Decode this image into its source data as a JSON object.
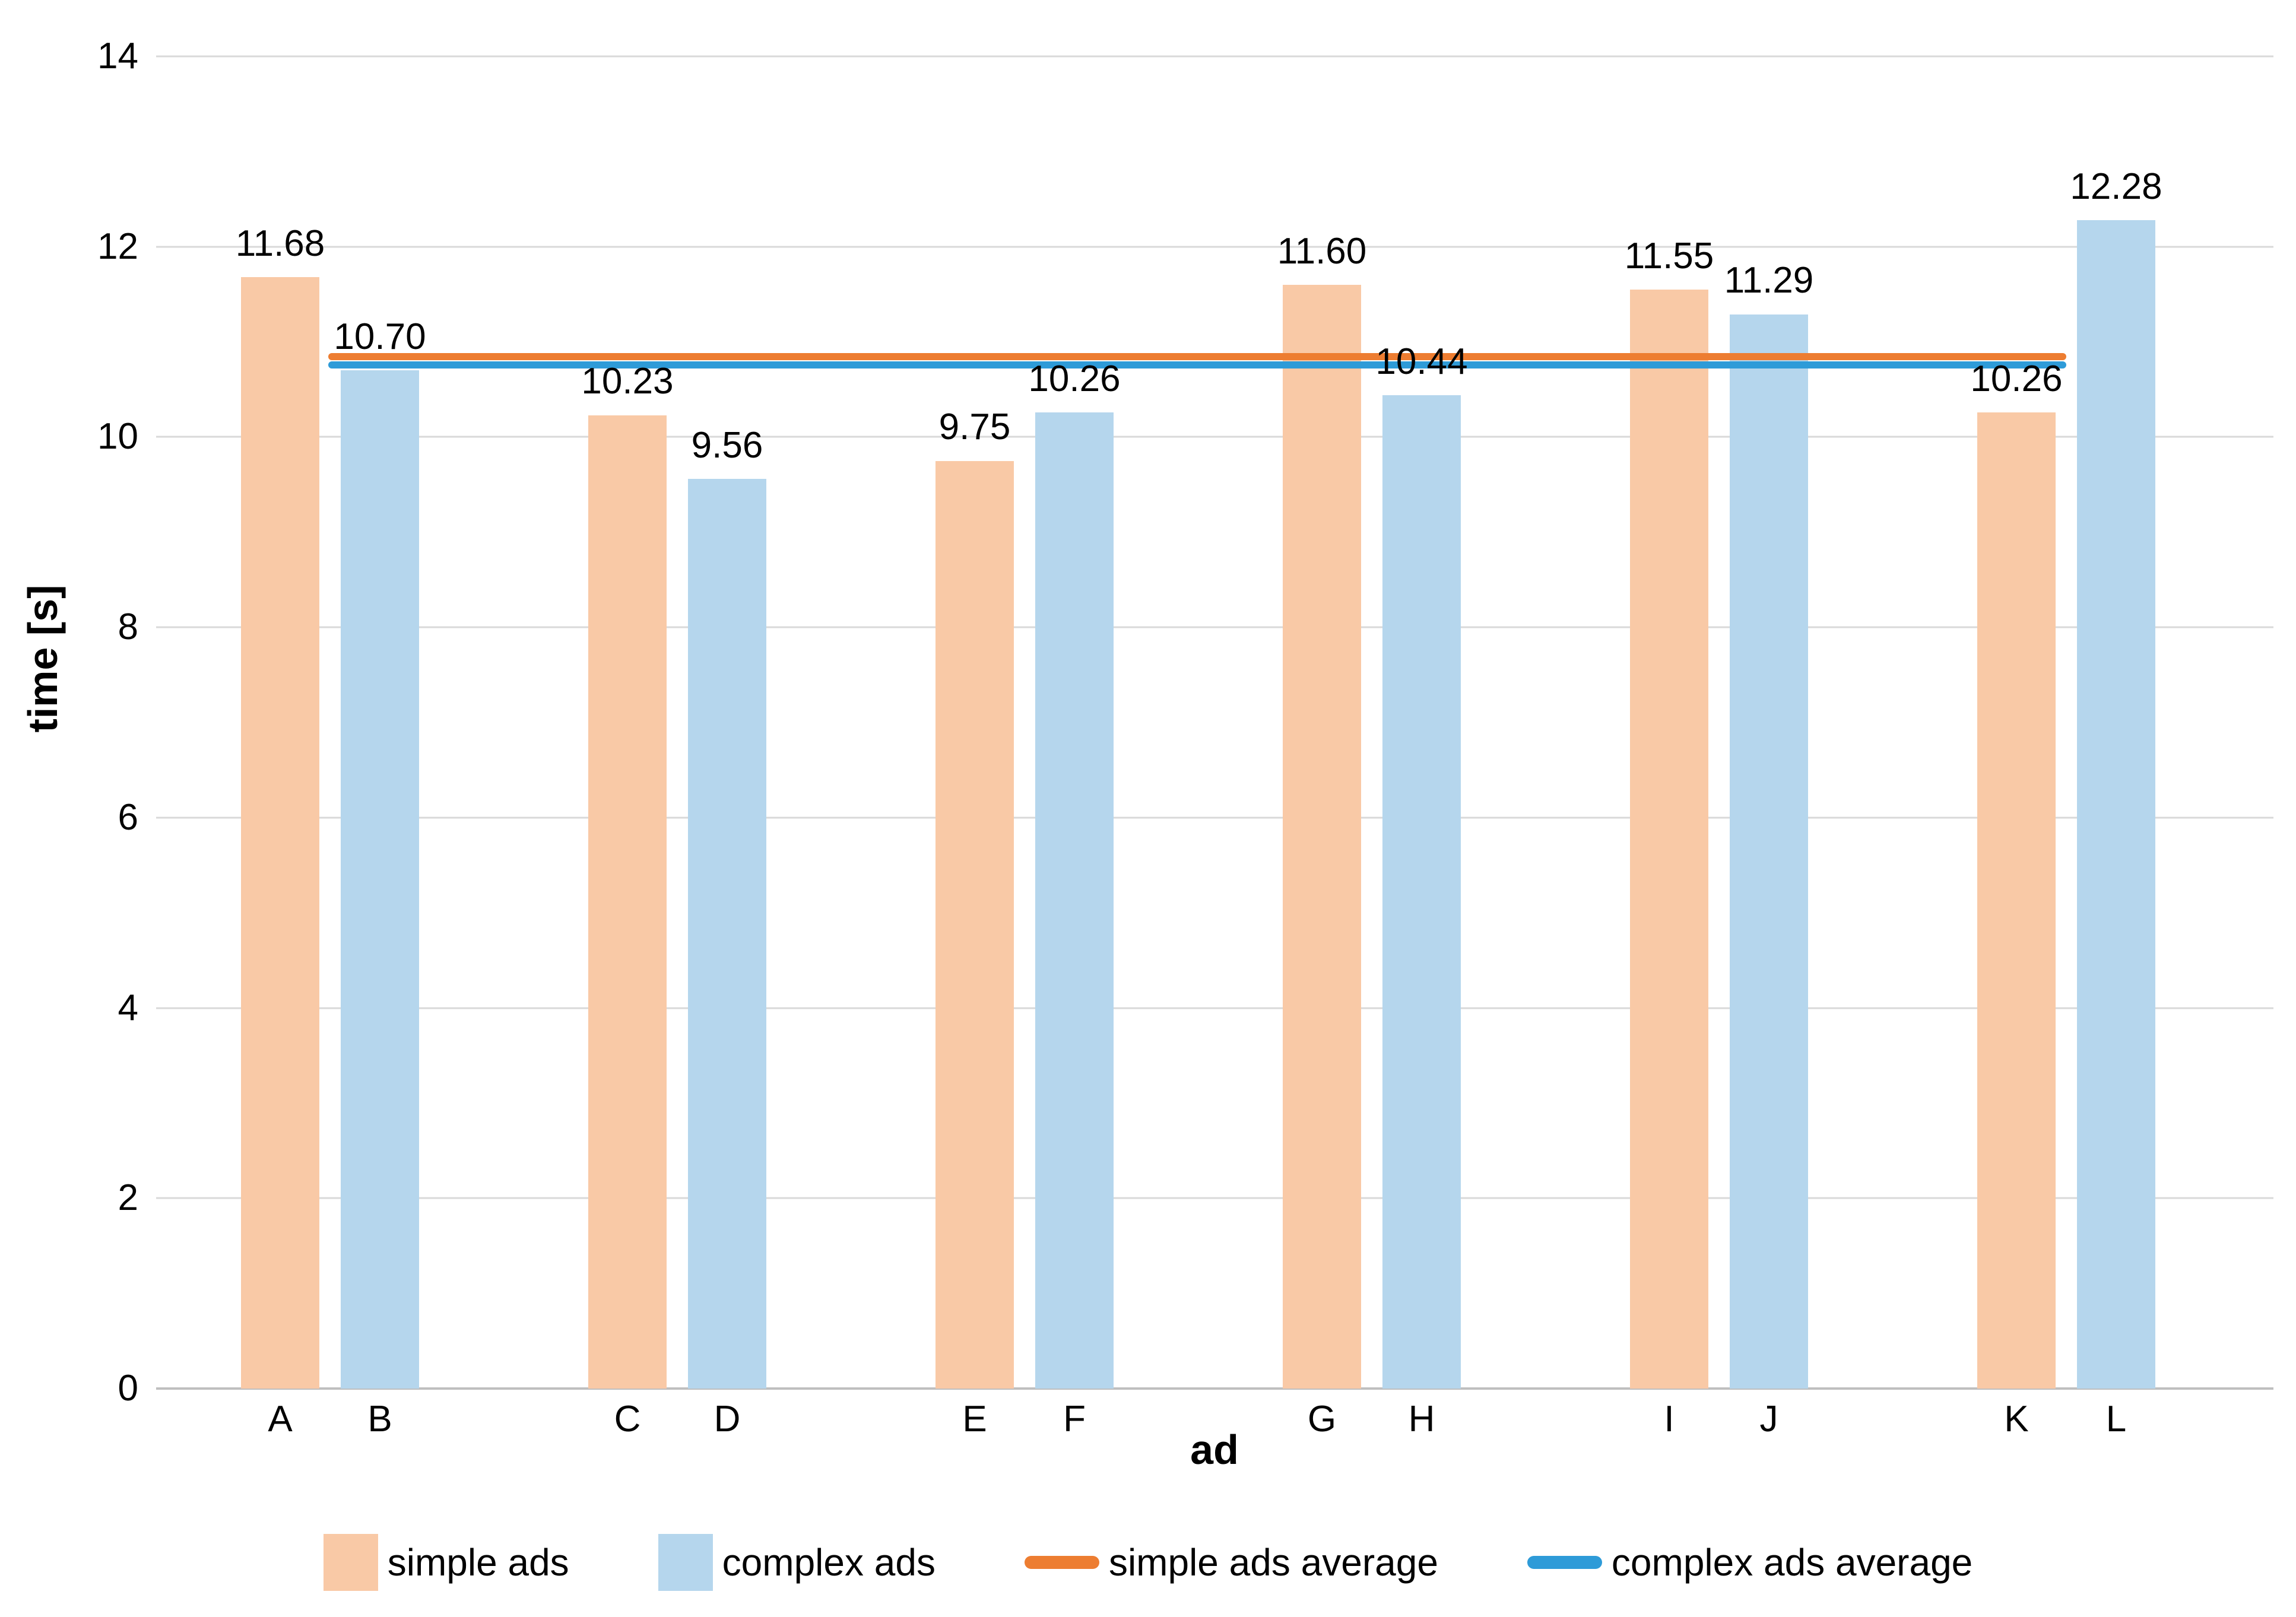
{
  "chart_data": {
    "type": "bar",
    "title": "",
    "xlabel": "ad",
    "ylabel": "time [s]",
    "ylim": [
      0,
      14
    ],
    "ytick_labels": [
      "0",
      "2",
      "4",
      "6",
      "8",
      "10",
      "12",
      "14"
    ],
    "grid": true,
    "legend_position": "bottom",
    "categories": [
      "A",
      "B",
      "C",
      "D",
      "E",
      "F",
      "G",
      "H",
      "I",
      "J",
      "K",
      "L"
    ],
    "series_colors": {
      "simple ads": "#f9c9a6",
      "complex ads": "#b5d6ed"
    },
    "bars": [
      {
        "category": "A",
        "series": "simple ads",
        "value": 11.68,
        "label": "11.68"
      },
      {
        "category": "B",
        "series": "complex ads",
        "value": 10.7,
        "label": "10.70"
      },
      {
        "category": "C",
        "series": "simple ads",
        "value": 10.23,
        "label": "10.23"
      },
      {
        "category": "D",
        "series": "complex ads",
        "value": 9.56,
        "label": "9.56"
      },
      {
        "category": "E",
        "series": "simple ads",
        "value": 9.75,
        "label": "9.75"
      },
      {
        "category": "F",
        "series": "complex ads",
        "value": 10.26,
        "label": "10.26"
      },
      {
        "category": "G",
        "series": "simple ads",
        "value": 11.6,
        "label": "11.60"
      },
      {
        "category": "H",
        "series": "complex ads",
        "value": 10.44,
        "label": "10.44"
      },
      {
        "category": "I",
        "series": "simple ads",
        "value": 11.55,
        "label": "11.55"
      },
      {
        "category": "J",
        "series": "complex ads",
        "value": 11.29,
        "label": "11.29"
      },
      {
        "category": "K",
        "series": "simple ads",
        "value": 10.26,
        "label": "10.26"
      },
      {
        "category": "L",
        "series": "complex ads",
        "value": 12.28,
        "label": "12.28"
      }
    ],
    "average_lines": [
      {
        "name": "simple ads average",
        "value": 10.845,
        "color": "#ed7d31"
      },
      {
        "name": "complex ads average",
        "value": 10.755,
        "color": "#2e9bd8"
      }
    ],
    "legend": [
      {
        "label": "simple ads",
        "swatch": "bar",
        "color": "#f9c9a6"
      },
      {
        "label": "complex ads",
        "swatch": "bar",
        "color": "#b5d6ed"
      },
      {
        "label": "simple ads average",
        "swatch": "line",
        "color": "#ed7d31"
      },
      {
        "label": "complex ads average",
        "swatch": "line",
        "color": "#2e9bd8"
      }
    ]
  }
}
